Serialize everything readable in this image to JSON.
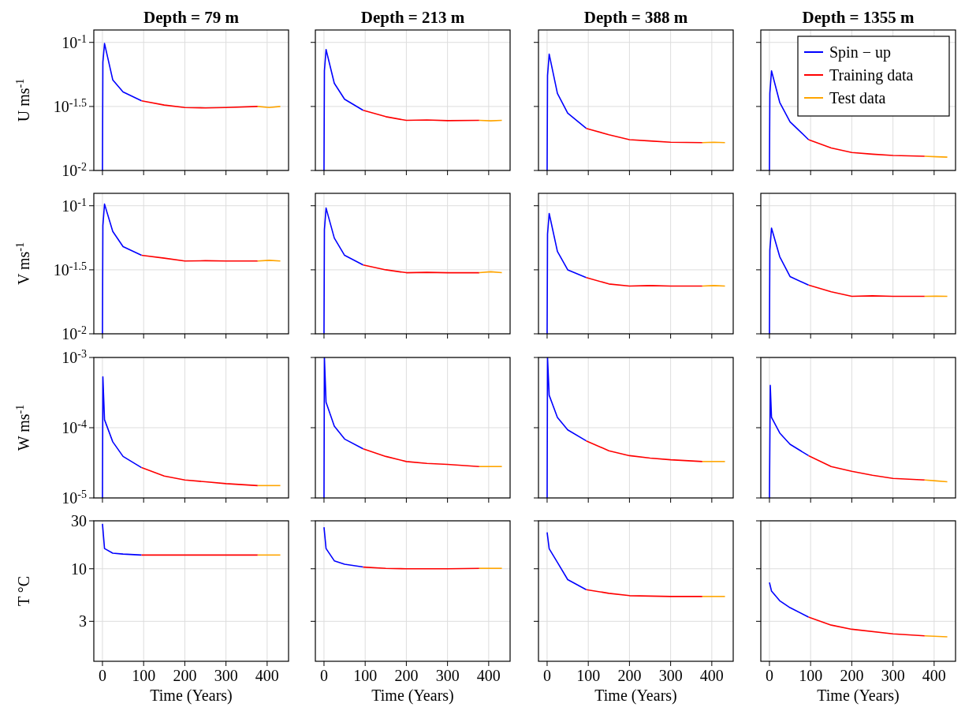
{
  "chart_data": [
    {
      "type": "line",
      "title": "Depth = 79 m",
      "ylabel": "U ms$^{-1}$",
      "xlim": [
        -21,
        452
      ],
      "xticks": [
        0,
        100,
        200,
        300,
        400
      ],
      "ylim": [
        0.01,
        0.125
      ],
      "yticks": [
        {
          "value": 0.01,
          "label": "10$^{-2}$"
        },
        {
          "value": 0.0316,
          "label": "10$^{-1.5}$"
        },
        {
          "value": 0.1,
          "label": "10$^{-1}$"
        }
      ],
      "log": "y",
      "grid": true,
      "tick_labels": "y",
      "series": [
        {
          "color": "#0000ff",
          "x": [
            0,
            1,
            5,
            25,
            50,
            95
          ],
          "values": [
            0.01,
            0.07,
            0.098,
            0.051,
            0.041,
            0.035
          ]
        },
        {
          "color": "#ff0000",
          "x": [
            95,
            150,
            200,
            250,
            300,
            377
          ],
          "values": [
            0.035,
            0.0324,
            0.031,
            0.0308,
            0.031,
            0.0316
          ]
        },
        {
          "color": "#ffa500",
          "x": [
            377,
            405,
            432
          ],
          "values": [
            0.0316,
            0.031,
            0.0316
          ]
        }
      ]
    },
    {
      "type": "line",
      "title": "Depth = 213 m",
      "xlim": [
        -21,
        452
      ],
      "xticks": [
        0,
        100,
        200,
        300,
        400
      ],
      "ylim": [
        0.01,
        0.125
      ],
      "yticks": [
        {
          "value": 0.01,
          "label": null
        },
        {
          "value": 0.0316,
          "label": null
        },
        {
          "value": 0.1,
          "label": null
        }
      ],
      "log": "y",
      "grid": true,
      "tick_labels": false,
      "series": [
        {
          "color": "#0000ff",
          "x": [
            0,
            1,
            5,
            25,
            50,
            95
          ],
          "values": [
            0.01,
            0.06,
            0.088,
            0.048,
            0.036,
            0.0295
          ]
        },
        {
          "color": "#ff0000",
          "x": [
            95,
            150,
            200,
            250,
            300,
            377
          ],
          "values": [
            0.0295,
            0.0263,
            0.0246,
            0.0248,
            0.0245,
            0.0246
          ]
        },
        {
          "color": "#ffa500",
          "x": [
            377,
            405,
            432
          ],
          "values": [
            0.0246,
            0.0244,
            0.0246
          ]
        }
      ]
    },
    {
      "type": "line",
      "title": "Depth = 388 m",
      "xlim": [
        -21,
        452
      ],
      "xticks": [
        0,
        100,
        200,
        300,
        400
      ],
      "ylim": [
        0.01,
        0.125
      ],
      "yticks": [
        {
          "value": 0.01,
          "label": null
        },
        {
          "value": 0.0316,
          "label": null
        },
        {
          "value": 0.1,
          "label": null
        }
      ],
      "log": "y",
      "grid": true,
      "tick_labels": false,
      "series": [
        {
          "color": "#0000ff",
          "x": [
            0,
            1,
            5,
            25,
            50,
            95
          ],
          "values": [
            0.01,
            0.055,
            0.081,
            0.04,
            0.028,
            0.0213
          ]
        },
        {
          "color": "#ff0000",
          "x": [
            95,
            150,
            200,
            250,
            300,
            377
          ],
          "values": [
            0.0213,
            0.019,
            0.0174,
            0.017,
            0.0166,
            0.0165
          ]
        },
        {
          "color": "#ffa500",
          "x": [
            377,
            405,
            432
          ],
          "values": [
            0.0165,
            0.0166,
            0.0165
          ]
        }
      ]
    },
    {
      "type": "line",
      "title": "Depth = 1355 m",
      "xlim": [
        -21,
        452
      ],
      "xticks": [
        0,
        100,
        200,
        300,
        400
      ],
      "ylim": [
        0.01,
        0.125
      ],
      "yticks": [
        {
          "value": 0.01,
          "label": null
        },
        {
          "value": 0.0316,
          "label": null
        },
        {
          "value": 0.1,
          "label": null
        }
      ],
      "log": "y",
      "grid": true,
      "tick_labels": false,
      "legend": "top right",
      "series": [
        {
          "name": "Spin − up",
          "color": "#0000ff",
          "x": [
            0,
            1,
            5,
            25,
            50,
            95
          ],
          "values": [
            0.01,
            0.04,
            0.06,
            0.034,
            0.024,
            0.0174
          ]
        },
        {
          "name": "Training data",
          "color": "#ff0000",
          "x": [
            95,
            150,
            200,
            250,
            300,
            377
          ],
          "values": [
            0.0174,
            0.015,
            0.0138,
            0.0134,
            0.0131,
            0.0129
          ]
        },
        {
          "name": "Test data",
          "color": "#ffa500",
          "x": [
            377,
            405,
            432
          ],
          "values": [
            0.0129,
            0.0128,
            0.0127
          ]
        }
      ]
    },
    {
      "type": "line",
      "ylabel": "V ms$^{-1}$",
      "xlim": [
        -21,
        452
      ],
      "xticks": [
        0,
        100,
        200,
        300,
        400
      ],
      "ylim": [
        0.01,
        0.125
      ],
      "yticks": [
        {
          "value": 0.01,
          "label": "10$^{-2}$"
        },
        {
          "value": 0.0316,
          "label": "10$^{-1.5}$"
        },
        {
          "value": 0.1,
          "label": "10$^{-1}$"
        }
      ],
      "log": "y",
      "grid": true,
      "tick_labels": "y",
      "series": [
        {
          "color": "#0000ff",
          "x": [
            0,
            1,
            5,
            25,
            50,
            95
          ],
          "values": [
            0.01,
            0.07,
            0.103,
            0.063,
            0.048,
            0.041
          ]
        },
        {
          "color": "#ff0000",
          "x": [
            95,
            150,
            200,
            250,
            300,
            377
          ],
          "values": [
            0.041,
            0.039,
            0.037,
            0.0372,
            0.037,
            0.037
          ]
        },
        {
          "color": "#ffa500",
          "x": [
            377,
            405,
            432
          ],
          "values": [
            0.037,
            0.0375,
            0.037
          ]
        }
      ]
    },
    {
      "type": "line",
      "xlim": [
        -21,
        452
      ],
      "xticks": [
        0,
        100,
        200,
        300,
        400
      ],
      "ylim": [
        0.01,
        0.125
      ],
      "yticks": [
        {
          "value": 0.01,
          "label": null
        },
        {
          "value": 0.0316,
          "label": null
        },
        {
          "value": 0.1,
          "label": null
        }
      ],
      "log": "y",
      "grid": true,
      "tick_labels": false,
      "series": [
        {
          "color": "#0000ff",
          "x": [
            0,
            1,
            5,
            25,
            50,
            95
          ],
          "values": [
            0.01,
            0.065,
            0.096,
            0.056,
            0.041,
            0.0345
          ]
        },
        {
          "color": "#ff0000",
          "x": [
            95,
            150,
            200,
            250,
            300,
            377
          ],
          "values": [
            0.0345,
            0.0316,
            0.03,
            0.0302,
            0.03,
            0.03
          ]
        },
        {
          "color": "#ffa500",
          "x": [
            377,
            405,
            432
          ],
          "values": [
            0.03,
            0.0305,
            0.03
          ]
        }
      ]
    },
    {
      "type": "line",
      "xlim": [
        -21,
        452
      ],
      "xticks": [
        0,
        100,
        200,
        300,
        400
      ],
      "ylim": [
        0.01,
        0.125
      ],
      "yticks": [
        {
          "value": 0.01,
          "label": null
        },
        {
          "value": 0.0316,
          "label": null
        },
        {
          "value": 0.1,
          "label": null
        }
      ],
      "log": "y",
      "grid": true,
      "tick_labels": false,
      "series": [
        {
          "color": "#0000ff",
          "x": [
            0,
            1,
            5,
            25,
            50,
            95
          ],
          "values": [
            0.01,
            0.06,
            0.087,
            0.044,
            0.0316,
            0.0275
          ]
        },
        {
          "color": "#ff0000",
          "x": [
            95,
            150,
            200,
            250,
            300,
            377
          ],
          "values": [
            0.0275,
            0.0245,
            0.0236,
            0.0238,
            0.0236,
            0.0236
          ]
        },
        {
          "color": "#ffa500",
          "x": [
            377,
            405,
            432
          ],
          "values": [
            0.0236,
            0.0238,
            0.0236
          ]
        }
      ]
    },
    {
      "type": "line",
      "xlim": [
        -21,
        452
      ],
      "xticks": [
        0,
        100,
        200,
        300,
        400
      ],
      "ylim": [
        0.01,
        0.125
      ],
      "yticks": [
        {
          "value": 0.01,
          "label": null
        },
        {
          "value": 0.0316,
          "label": null
        },
        {
          "value": 0.1,
          "label": null
        }
      ],
      "log": "y",
      "grid": true,
      "tick_labels": false,
      "series": [
        {
          "color": "#0000ff",
          "x": [
            0,
            1,
            5,
            25,
            50,
            95
          ],
          "values": [
            0.01,
            0.045,
            0.067,
            0.04,
            0.028,
            0.024
          ]
        },
        {
          "color": "#ff0000",
          "x": [
            95,
            150,
            200,
            250,
            300,
            377
          ],
          "values": [
            0.024,
            0.0213,
            0.0196,
            0.0198,
            0.0196,
            0.0196
          ]
        },
        {
          "color": "#ffa500",
          "x": [
            377,
            405,
            432
          ],
          "values": [
            0.0196,
            0.0197,
            0.0196
          ]
        }
      ]
    },
    {
      "type": "line",
      "ylabel": "W ms$^{-1}$",
      "xlim": [
        -21,
        452
      ],
      "xticks": [
        0,
        100,
        200,
        300,
        400
      ],
      "ylim": [
        1e-05,
        0.001
      ],
      "yticks": [
        {
          "value": 1e-05,
          "label": "10$^{-5}$"
        },
        {
          "value": 0.0001,
          "label": "10$^{-4}$"
        },
        {
          "value": 0.001,
          "label": "10$^{-3}$"
        }
      ],
      "log": "y",
      "grid": true,
      "tick_labels": "y",
      "series": [
        {
          "color": "#0000ff",
          "x": [
            0,
            1,
            5,
            25,
            50,
            95
          ],
          "values": [
            1e-05,
            0.00053,
            0.00013,
            6.3e-05,
            3.9e-05,
            2.7e-05
          ]
        },
        {
          "color": "#ff0000",
          "x": [
            95,
            150,
            200,
            250,
            300,
            377
          ],
          "values": [
            2.7e-05,
            2.05e-05,
            1.8e-05,
            1.7e-05,
            1.6e-05,
            1.5e-05
          ]
        },
        {
          "color": "#ffa500",
          "x": [
            377,
            405,
            432
          ],
          "values": [
            1.5e-05,
            1.5e-05,
            1.5e-05
          ]
        }
      ]
    },
    {
      "type": "line",
      "xlim": [
        -21,
        452
      ],
      "xticks": [
        0,
        100,
        200,
        300,
        400
      ],
      "ylim": [
        1e-05,
        0.001
      ],
      "yticks": [
        {
          "value": 1e-05,
          "label": null
        },
        {
          "value": 0.0001,
          "label": null
        },
        {
          "value": 0.001,
          "label": null
        }
      ],
      "log": "y",
      "grid": true,
      "tick_labels": false,
      "series": [
        {
          "color": "#0000ff",
          "x": [
            0,
            1,
            5,
            25,
            50,
            95
          ],
          "values": [
            1e-05,
            0.001,
            0.00023,
            0.000105,
            6.9e-05,
            5e-05
          ]
        },
        {
          "color": "#ff0000",
          "x": [
            95,
            150,
            200,
            250,
            300,
            377
          ],
          "values": [
            5e-05,
            3.9e-05,
            3.3e-05,
            3.1e-05,
            3e-05,
            2.8e-05
          ]
        },
        {
          "color": "#ffa500",
          "x": [
            377,
            405,
            432
          ],
          "values": [
            2.8e-05,
            2.8e-05,
            2.8e-05
          ]
        }
      ]
    },
    {
      "type": "line",
      "xlim": [
        -21,
        452
      ],
      "xticks": [
        0,
        100,
        200,
        300,
        400
      ],
      "ylim": [
        1e-05,
        0.001
      ],
      "yticks": [
        {
          "value": 1e-05,
          "label": null
        },
        {
          "value": 0.0001,
          "label": null
        },
        {
          "value": 0.001,
          "label": null
        }
      ],
      "log": "y",
      "grid": true,
      "tick_labels": false,
      "series": [
        {
          "color": "#0000ff",
          "x": [
            0,
            1,
            5,
            25,
            50,
            95
          ],
          "values": [
            1e-05,
            0.001,
            0.00029,
            0.00014,
            9.3e-05,
            6.5e-05
          ]
        },
        {
          "color": "#ff0000",
          "x": [
            95,
            150,
            200,
            250,
            300,
            377
          ],
          "values": [
            6.5e-05,
            4.7e-05,
            4e-05,
            3.7e-05,
            3.5e-05,
            3.3e-05
          ]
        },
        {
          "color": "#ffa500",
          "x": [
            377,
            405,
            432
          ],
          "values": [
            3.3e-05,
            3.3e-05,
            3.3e-05
          ]
        }
      ]
    },
    {
      "type": "line",
      "xlim": [
        -21,
        452
      ],
      "xticks": [
        0,
        100,
        200,
        300,
        400
      ],
      "ylim": [
        1e-05,
        0.001
      ],
      "yticks": [
        {
          "value": 1e-05,
          "label": null
        },
        {
          "value": 0.0001,
          "label": null
        },
        {
          "value": 0.001,
          "label": null
        }
      ],
      "log": "y",
      "grid": true,
      "tick_labels": false,
      "series": [
        {
          "color": "#0000ff",
          "x": [
            0,
            2,
            5,
            25,
            50,
            95
          ],
          "values": [
            1e-05,
            0.0004,
            0.00014,
            8.4e-05,
            5.8e-05,
            4e-05
          ]
        },
        {
          "color": "#ff0000",
          "x": [
            95,
            150,
            200,
            250,
            300,
            377
          ],
          "values": [
            4e-05,
            2.8e-05,
            2.4e-05,
            2.1e-05,
            1.9e-05,
            1.8e-05
          ]
        },
        {
          "color": "#ffa500",
          "x": [
            377,
            405,
            432
          ],
          "values": [
            1.8e-05,
            1.75e-05,
            1.7e-05
          ]
        }
      ]
    },
    {
      "type": "line",
      "ylabel": "T °C",
      "xlabel": "Time (Years)",
      "xlim": [
        -21,
        452
      ],
      "xticks": [
        0,
        100,
        200,
        300,
        400
      ],
      "ylim": [
        1.2,
        30
      ],
      "yticks": [
        3,
        10,
        30
      ],
      "log": "y",
      "grid": true,
      "series": [
        {
          "color": "#0000ff",
          "x": [
            0,
            5,
            25,
            50,
            95
          ],
          "values": [
            28,
            15.9,
            14.3,
            14,
            13.7
          ]
        },
        {
          "color": "#ff0000",
          "x": [
            95,
            150,
            200,
            300,
            377
          ],
          "values": [
            13.7,
            13.7,
            13.7,
            13.7,
            13.7
          ]
        },
        {
          "color": "#ffa500",
          "x": [
            377,
            432
          ],
          "values": [
            13.7,
            13.7
          ]
        }
      ]
    },
    {
      "type": "line",
      "xlabel": "Time (Years)",
      "xlim": [
        -21,
        452
      ],
      "xticks": [
        0,
        100,
        200,
        300,
        400
      ],
      "ylim": [
        1.2,
        30
      ],
      "yticks": [
        {
          "value": 3,
          "label": null
        },
        {
          "value": 10,
          "label": null
        },
        {
          "value": 30,
          "label": null
        }
      ],
      "log": "y",
      "grid": true,
      "tick_labels": "x",
      "series": [
        {
          "color": "#0000ff",
          "x": [
            0,
            5,
            25,
            50,
            95
          ],
          "values": [
            25.9,
            15.9,
            12,
            11.1,
            10.4
          ]
        },
        {
          "color": "#ff0000",
          "x": [
            95,
            150,
            200,
            300,
            377
          ],
          "values": [
            10.4,
            10.1,
            10,
            10,
            10.1
          ]
        },
        {
          "color": "#ffa500",
          "x": [
            377,
            432
          ],
          "values": [
            10.1,
            10.1
          ]
        }
      ]
    },
    {
      "type": "line",
      "xlabel": "Time (Years)",
      "xlim": [
        -21,
        452
      ],
      "xticks": [
        0,
        100,
        200,
        300,
        400
      ],
      "ylim": [
        1.2,
        30
      ],
      "yticks": [
        {
          "value": 3,
          "label": null
        },
        {
          "value": 10,
          "label": null
        },
        {
          "value": 30,
          "label": null
        }
      ],
      "log": "y",
      "grid": true,
      "tick_labels": "x",
      "series": [
        {
          "color": "#0000ff",
          "x": [
            0,
            5,
            25,
            50,
            95
          ],
          "values": [
            23,
            15.8,
            11.6,
            7.8,
            6.2
          ]
        },
        {
          "color": "#ff0000",
          "x": [
            95,
            150,
            200,
            300,
            377
          ],
          "values": [
            6.2,
            5.7,
            5.4,
            5.3,
            5.3
          ]
        },
        {
          "color": "#ffa500",
          "x": [
            377,
            432
          ],
          "values": [
            5.3,
            5.3
          ]
        }
      ]
    },
    {
      "type": "line",
      "xlabel": "Time (Years)",
      "xlim": [
        -21,
        452
      ],
      "xticks": [
        0,
        100,
        200,
        300,
        400
      ],
      "ylim": [
        1.2,
        30
      ],
      "yticks": [
        {
          "value": 3,
          "label": null
        },
        {
          "value": 10,
          "label": null
        },
        {
          "value": 30,
          "label": null
        }
      ],
      "log": "y",
      "grid": true,
      "tick_labels": "x",
      "series": [
        {
          "color": "#0000ff",
          "x": [
            0,
            5,
            25,
            50,
            95
          ],
          "values": [
            7.3,
            6,
            4.8,
            4.1,
            3.3
          ]
        },
        {
          "color": "#ff0000",
          "x": [
            95,
            150,
            200,
            300,
            377
          ],
          "values": [
            3.3,
            2.75,
            2.5,
            2.25,
            2.15
          ]
        },
        {
          "color": "#ffa500",
          "x": [
            377,
            432
          ],
          "values": [
            2.15,
            2.1
          ]
        }
      ]
    }
  ]
}
